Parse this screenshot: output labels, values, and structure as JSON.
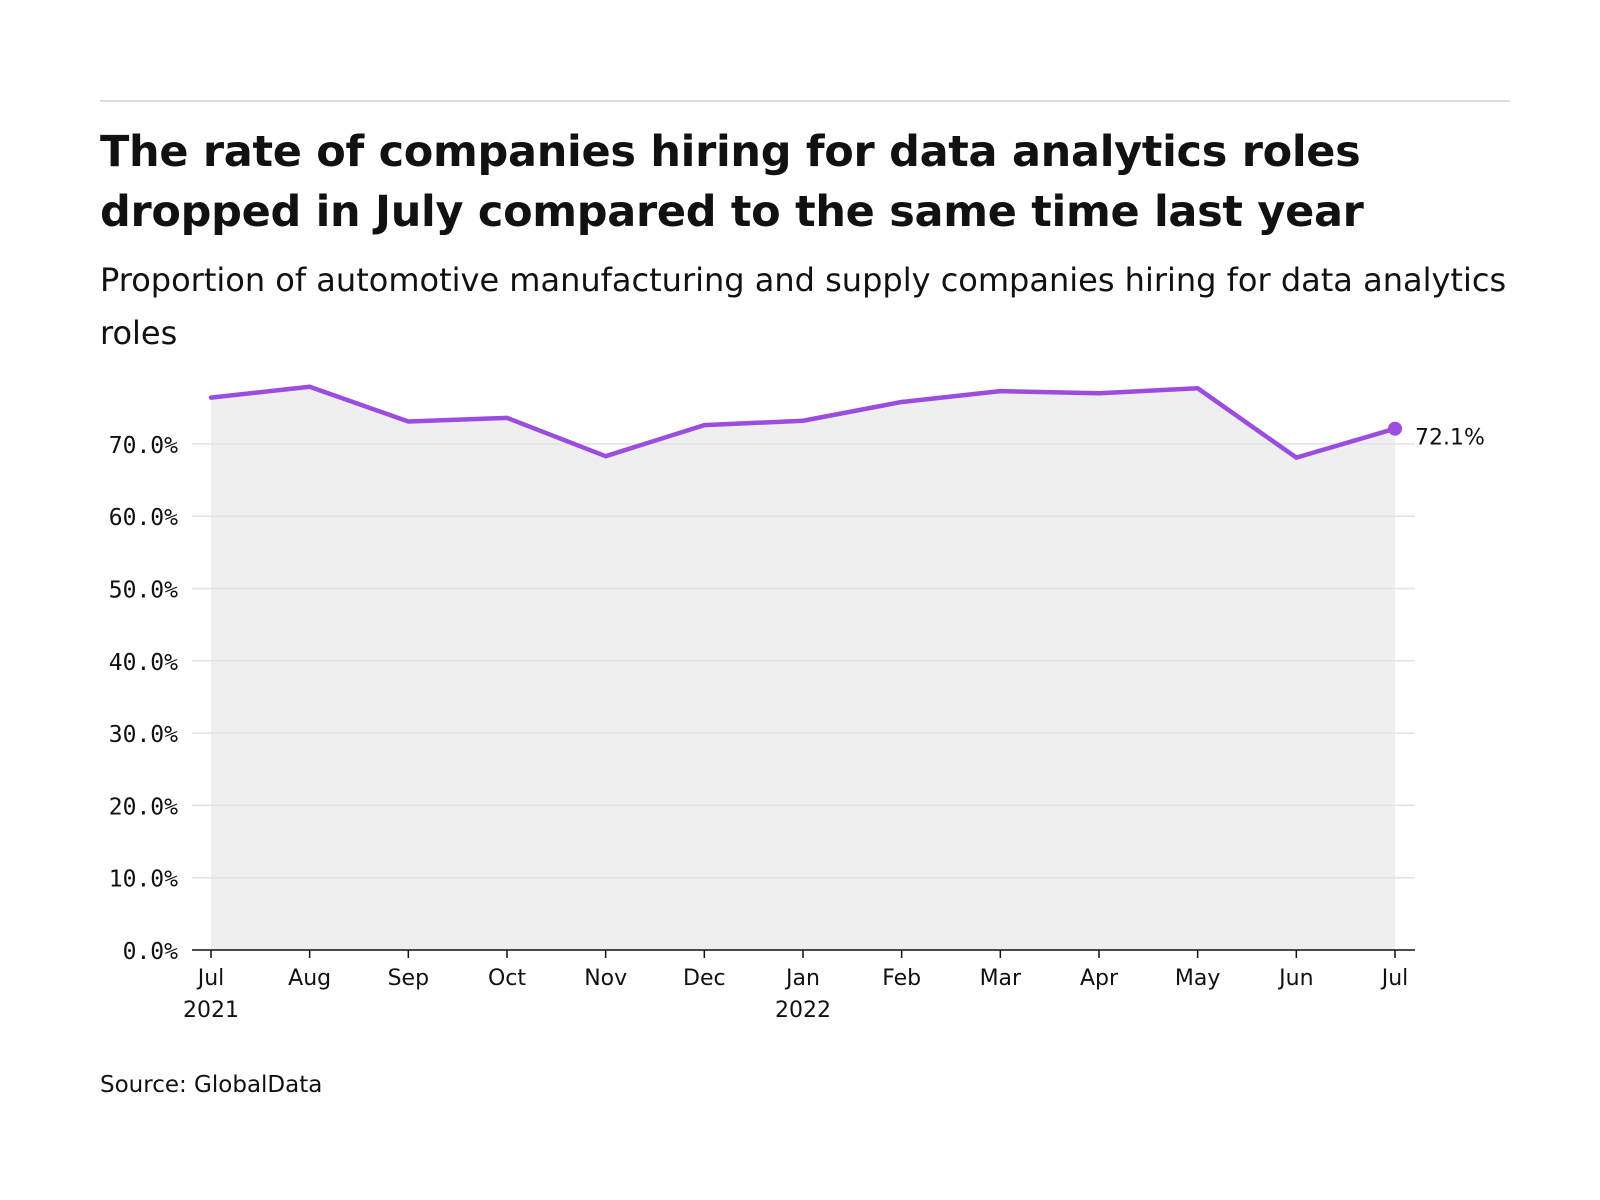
{
  "header": {
    "title": "The rate of companies hiring for data analytics roles dropped in July compared to the same time last year",
    "subtitle": "Proportion of automotive manufacturing and supply companies hiring for data analytics roles"
  },
  "footer": {
    "source": "Source: GlobalData"
  },
  "colors": {
    "line": "#9b4de0",
    "area": "#efefef",
    "grid": "#e2e2e2",
    "axis": "#111111"
  },
  "chart_data": {
    "type": "area",
    "title": "The rate of companies hiring for data analytics roles dropped in July compared to the same time last year",
    "subtitle": "Proportion of automotive manufacturing and supply companies hiring for data analytics roles",
    "xlabel": "",
    "ylabel": "",
    "ylim": [
      0,
      80
    ],
    "y_ticks": [
      "0.0%",
      "10.0%",
      "20.0%",
      "30.0%",
      "40.0%",
      "50.0%",
      "60.0%",
      "70.0%"
    ],
    "y_tick_values": [
      0,
      10,
      20,
      30,
      40,
      50,
      60,
      70
    ],
    "categories": [
      "2021-07",
      "2021-08",
      "2021-09",
      "2021-10",
      "2021-11",
      "2021-12",
      "2022-01",
      "2022-02",
      "2022-03",
      "2022-04",
      "2022-05",
      "2022-06",
      "2022-07"
    ],
    "x_tick_labels": [
      {
        "line1": "Jul",
        "line2": "2021"
      },
      {
        "line1": "Aug",
        "line2": ""
      },
      {
        "line1": "Sep",
        "line2": ""
      },
      {
        "line1": "Oct",
        "line2": ""
      },
      {
        "line1": "Nov",
        "line2": ""
      },
      {
        "line1": "Dec",
        "line2": ""
      },
      {
        "line1": "Jan",
        "line2": "2022"
      },
      {
        "line1": "Feb",
        "line2": ""
      },
      {
        "line1": "Mar",
        "line2": ""
      },
      {
        "line1": "Apr",
        "line2": ""
      },
      {
        "line1": "May",
        "line2": ""
      },
      {
        "line1": "Jun",
        "line2": ""
      },
      {
        "line1": "Jul",
        "line2": ""
      }
    ],
    "series": [
      {
        "values": [
          76.4,
          77.9,
          73.1,
          73.6,
          68.3,
          72.6,
          73.2,
          75.8,
          77.3,
          77.0,
          77.7,
          68.1,
          72.1
        ]
      }
    ],
    "last_value_label": "72.1%",
    "grid": true,
    "legend": "none"
  }
}
